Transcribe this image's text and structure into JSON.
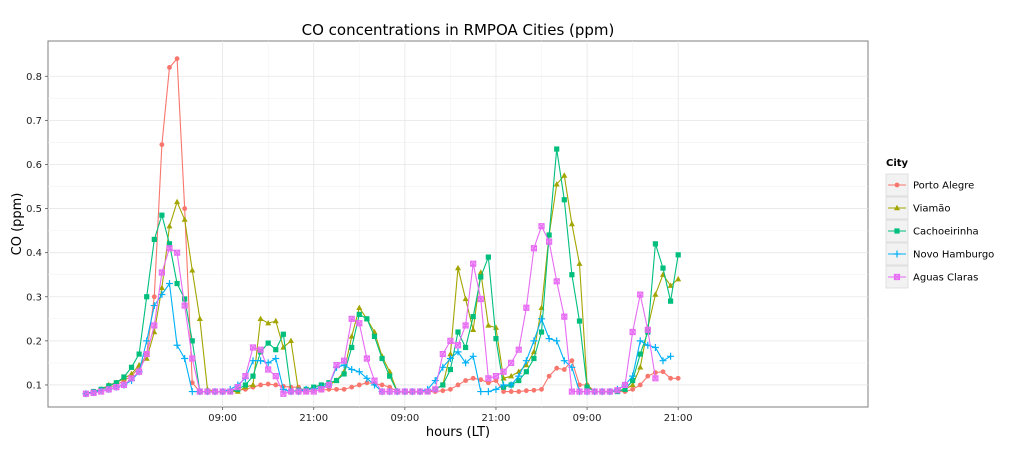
{
  "chart_data": {
    "type": "line",
    "title": "CO concentrations in RMPOA Cities (ppm)",
    "xlabel": "hours (LT)",
    "ylabel": "CO (ppm)",
    "x_unit": "hour index (0 = first sample, 1 per hour)",
    "xlim": [
      -5,
      103
    ],
    "ylim": [
      0.05,
      0.88
    ],
    "x_ticks": [
      {
        "value": 18,
        "label": "09:00"
      },
      {
        "value": 30,
        "label": "21:00"
      },
      {
        "value": 42,
        "label": "09:00"
      },
      {
        "value": 54,
        "label": "21:00"
      },
      {
        "value": 66,
        "label": "09:00"
      },
      {
        "value": 78,
        "label": "21:00"
      }
    ],
    "y_ticks": [
      0.1,
      0.2,
      0.3,
      0.4,
      0.5,
      0.6,
      0.7,
      0.8
    ],
    "y_tick_labels": [
      "0.1",
      "0.2",
      "0.3",
      "0.4",
      "0.5",
      "0.6",
      "0.7",
      "0.8"
    ],
    "grid": true,
    "legend": {
      "title": "City",
      "position": "right"
    },
    "series": [
      {
        "name": "Porto Alegre",
        "color": "#F8766D",
        "marker": "circle",
        "values": [
          0.08,
          0.083,
          0.09,
          0.095,
          0.1,
          0.11,
          0.12,
          0.14,
          0.17,
          0.3,
          0.645,
          0.82,
          0.84,
          0.5,
          0.105,
          0.085,
          0.085,
          0.083,
          0.085,
          0.085,
          0.088,
          0.09,
          0.095,
          0.1,
          0.102,
          0.1,
          0.097,
          0.095,
          0.095,
          0.085,
          0.087,
          0.088,
          0.09,
          0.09,
          0.09,
          0.095,
          0.1,
          0.105,
          0.103,
          0.1,
          0.095,
          0.085,
          0.083,
          0.083,
          0.085,
          0.085,
          0.085,
          0.087,
          0.09,
          0.1,
          0.11,
          0.115,
          0.112,
          0.105,
          0.11,
          0.085,
          0.085,
          0.085,
          0.087,
          0.088,
          0.09,
          0.12,
          0.138,
          0.135,
          0.155,
          0.1,
          0.1,
          0.085,
          0.085,
          0.085,
          0.085,
          0.085,
          0.09,
          0.1,
          0.12,
          0.128,
          0.13,
          0.115,
          0.115
        ]
      },
      {
        "name": "Viamão",
        "color": "#A3A500",
        "marker": "triangle",
        "values": [
          0.08,
          0.085,
          0.09,
          0.1,
          0.105,
          0.115,
          0.125,
          0.145,
          0.16,
          0.22,
          0.32,
          0.46,
          0.515,
          0.475,
          0.36,
          0.25,
          0.09,
          0.085,
          0.085,
          0.085,
          0.085,
          0.095,
          0.1,
          0.25,
          0.24,
          0.245,
          0.185,
          0.2,
          0.085,
          0.09,
          0.09,
          0.095,
          0.1,
          0.11,
          0.13,
          0.21,
          0.275,
          0.25,
          0.22,
          0.165,
          0.13,
          0.085,
          0.085,
          0.085,
          0.085,
          0.085,
          0.09,
          0.1,
          0.17,
          0.365,
          0.295,
          0.225,
          0.355,
          0.235,
          0.23,
          0.115,
          0.12,
          0.13,
          0.145,
          0.175,
          0.275,
          0.44,
          0.555,
          0.575,
          0.465,
          0.375,
          0.1,
          0.085,
          0.085,
          0.085,
          0.088,
          0.09,
          0.1,
          0.14,
          0.23,
          0.305,
          0.35,
          0.325,
          0.34
        ]
      },
      {
        "name": "Cachoeirinha",
        "color": "#00BF7D",
        "marker": "square",
        "values": [
          0.08,
          0.085,
          0.09,
          0.098,
          0.105,
          0.118,
          0.14,
          0.17,
          0.3,
          0.43,
          0.485,
          0.42,
          0.33,
          0.295,
          0.2,
          0.085,
          0.085,
          0.085,
          0.085,
          0.085,
          0.09,
          0.1,
          0.12,
          0.175,
          0.195,
          0.18,
          0.215,
          0.085,
          0.088,
          0.09,
          0.095,
          0.1,
          0.105,
          0.11,
          0.125,
          0.185,
          0.26,
          0.25,
          0.21,
          0.16,
          0.12,
          0.085,
          0.085,
          0.085,
          0.085,
          0.085,
          0.09,
          0.1,
          0.135,
          0.22,
          0.185,
          0.255,
          0.345,
          0.39,
          0.205,
          0.095,
          0.1,
          0.11,
          0.13,
          0.16,
          0.22,
          0.44,
          0.635,
          0.52,
          0.35,
          0.245,
          0.095,
          0.085,
          0.085,
          0.085,
          0.085,
          0.09,
          0.11,
          0.17,
          0.22,
          0.42,
          0.365,
          0.29,
          0.395
        ]
      },
      {
        "name": "Novo Hamburgo",
        "color": "#00B0F6",
        "marker": "plus",
        "values": [
          0.08,
          0.083,
          0.087,
          0.09,
          0.095,
          0.1,
          0.11,
          0.13,
          0.2,
          0.28,
          0.305,
          0.33,
          0.19,
          0.16,
          0.085,
          0.085,
          0.085,
          0.085,
          0.085,
          0.09,
          0.1,
          0.115,
          0.155,
          0.155,
          0.15,
          0.16,
          0.09,
          0.085,
          0.085,
          0.09,
          0.09,
          0.095,
          0.1,
          0.14,
          0.145,
          0.135,
          0.13,
          0.115,
          0.1,
          0.085,
          0.085,
          0.085,
          0.085,
          0.085,
          0.085,
          0.09,
          0.11,
          0.14,
          0.16,
          0.175,
          0.15,
          0.165,
          0.085,
          0.085,
          0.09,
          0.1,
          0.1,
          0.12,
          0.155,
          0.2,
          0.25,
          0.205,
          0.2,
          0.155,
          0.14,
          0.085,
          0.085,
          0.085,
          0.085,
          0.085,
          0.09,
          0.1,
          0.12,
          0.2,
          0.19,
          0.185,
          0.155,
          0.165
        ]
      },
      {
        "name": "Aguas Claras",
        "color": "#E76BF3",
        "marker": "square-x",
        "values": [
          0.08,
          0.082,
          0.085,
          0.09,
          0.095,
          0.1,
          0.115,
          0.13,
          0.17,
          0.235,
          0.355,
          0.41,
          0.4,
          0.28,
          0.16,
          0.085,
          0.085,
          0.085,
          0.085,
          0.085,
          0.095,
          0.12,
          0.185,
          0.18,
          0.135,
          0.12,
          0.08,
          0.085,
          0.085,
          0.085,
          0.085,
          0.09,
          0.1,
          0.145,
          0.155,
          0.25,
          0.24,
          0.16,
          0.11,
          0.085,
          0.085,
          0.085,
          0.085,
          0.085,
          0.085,
          0.085,
          0.09,
          0.17,
          0.2,
          0.19,
          0.235,
          0.375,
          0.295,
          0.115,
          0.12,
          0.13,
          0.15,
          0.18,
          0.275,
          0.41,
          0.46,
          0.425,
          0.335,
          0.255,
          0.085,
          0.085,
          0.085,
          0.085,
          0.085,
          0.085,
          0.088,
          0.1,
          0.22,
          0.305,
          0.225,
          0.115
        ]
      }
    ]
  }
}
